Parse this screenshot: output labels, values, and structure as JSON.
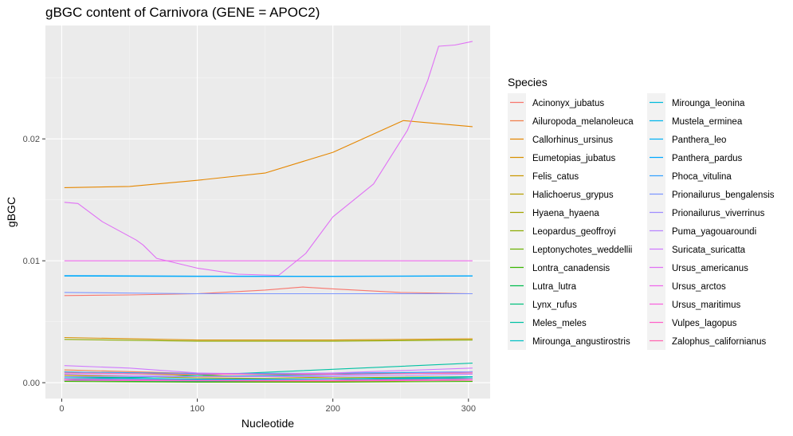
{
  "chart_data": {
    "type": "line",
    "title": "gBGC content of Carnivora (GENE = APOC2)",
    "xlabel": "Nucleotide",
    "ylabel": "gBGC",
    "xlim": [
      -12,
      316
    ],
    "ylim": [
      -0.0013,
      0.0293
    ],
    "x_ticks": [
      0,
      100,
      200,
      300
    ],
    "x_tick_labels": [
      "0",
      "100",
      "200",
      "300"
    ],
    "y_ticks": [
      0.0,
      0.01,
      0.02
    ],
    "y_tick_labels": [
      "0.00",
      "0.01",
      "0.02"
    ],
    "grid": true,
    "legend": {
      "title": "Species",
      "placement": "right",
      "columns": 2
    },
    "series": [
      {
        "name": "Acinonyx_jubatus",
        "color": "#F8766D",
        "x": [
          2,
          50,
          100,
          150,
          178,
          200,
          250,
          303
        ],
        "y": [
          0.00715,
          0.0072,
          0.0073,
          0.0076,
          0.00785,
          0.0077,
          0.0074,
          0.0073
        ]
      },
      {
        "name": "Ailuropoda_melanoleuca",
        "color": "#F17E4A",
        "x": [
          2,
          100,
          200,
          303
        ],
        "y": [
          0.00105,
          0.00075,
          0.0007,
          0.0008
        ]
      },
      {
        "name": "Callorhinus_ursinus",
        "color": "#E58700",
        "x": [
          2,
          50,
          100,
          150,
          200,
          252,
          303
        ],
        "y": [
          0.016,
          0.0161,
          0.0166,
          0.0172,
          0.0189,
          0.0215,
          0.021
        ]
      },
      {
        "name": "Eumetopias_jubatus",
        "color": "#D89000",
        "x": [
          2,
          100,
          200,
          303
        ],
        "y": [
          0.0037,
          0.0035,
          0.0035,
          0.0036
        ]
      },
      {
        "name": "Felis_catus",
        "color": "#C99800",
        "x": [
          2,
          100,
          200,
          303
        ],
        "y": [
          0.0002,
          0.0001,
          0.0001,
          0.0002
        ]
      },
      {
        "name": "Halichoerus_grypus",
        "color": "#B79F00",
        "x": [
          2,
          100,
          200,
          303
        ],
        "y": [
          0.0006,
          0.0004,
          0.0003,
          0.0004
        ]
      },
      {
        "name": "Hyaena_hyaena",
        "color": "#A3A500",
        "x": [
          2,
          100,
          200,
          303
        ],
        "y": [
          0.0009,
          0.0006,
          0.0004,
          0.0005
        ]
      },
      {
        "name": "Leopardus_geoffroyi",
        "color": "#8CAB00",
        "x": [
          2,
          100,
          200,
          303
        ],
        "y": [
          0.00355,
          0.0034,
          0.0034,
          0.0035
        ]
      },
      {
        "name": "Leptonychotes_weddellii",
        "color": "#6BB100",
        "x": [
          2,
          100,
          200,
          303
        ],
        "y": [
          0.0003,
          0.0002,
          0.0002,
          0.0003
        ]
      },
      {
        "name": "Lontra_canadensis",
        "color": "#39B600",
        "x": [
          2,
          100,
          200,
          303
        ],
        "y": [
          0.0001,
          5e-05,
          5e-05,
          0.0001
        ]
      },
      {
        "name": "Lutra_lutra",
        "color": "#00BB4E",
        "x": [
          2,
          100,
          200,
          303
        ],
        "y": [
          0.0002,
          0.0001,
          0.0002,
          0.0004
        ]
      },
      {
        "name": "Lynx_rufus",
        "color": "#00BF7D",
        "x": [
          2,
          100,
          200,
          303
        ],
        "y": [
          0.0004,
          0.0005,
          0.0007,
          0.0009
        ]
      },
      {
        "name": "Meles_meles",
        "color": "#00C1A3",
        "x": [
          2,
          100,
          200,
          303
        ],
        "y": [
          0.0002,
          0.0006,
          0.0011,
          0.0016
        ]
      },
      {
        "name": "Mirounga_angustirostris",
        "color": "#00BFC4",
        "x": [
          2,
          100,
          200,
          303
        ],
        "y": [
          0.0003,
          0.00025,
          0.0003,
          0.0005
        ]
      },
      {
        "name": "Mirounga_leonina",
        "color": "#00BBDB",
        "x": [
          2,
          100,
          200,
          303
        ],
        "y": [
          0.0004,
          0.0003,
          0.0003,
          0.0004
        ]
      },
      {
        "name": "Mustela_erminea",
        "color": "#00B6EB",
        "x": [
          2,
          100,
          200,
          303
        ],
        "y": [
          0.0002,
          0.0002,
          0.0002,
          0.0003
        ]
      },
      {
        "name": "Panthera_leo",
        "color": "#00B0F6",
        "x": [
          2,
          100,
          200,
          303
        ],
        "y": [
          0.00875,
          0.00872,
          0.00872,
          0.00875
        ]
      },
      {
        "name": "Panthera_pardus",
        "color": "#00A8FF",
        "x": [
          2,
          100,
          200,
          303
        ],
        "y": [
          0.00878,
          0.00874,
          0.00873,
          0.00876
        ]
      },
      {
        "name": "Phoca_vitulina",
        "color": "#35A2FF",
        "x": [
          2,
          100,
          200,
          303
        ],
        "y": [
          0.00088,
          0.00075,
          0.00078,
          0.0009
        ]
      },
      {
        "name": "Prionailurus_bengalensis",
        "color": "#7C96FF",
        "x": [
          2,
          100,
          200,
          303
        ],
        "y": [
          0.0074,
          0.0073,
          0.0073,
          0.0073
        ]
      },
      {
        "name": "Prionailurus_viverrinus",
        "color": "#9F8CFF",
        "x": [
          2,
          100,
          200,
          303
        ],
        "y": [
          0.0005,
          0.0005,
          0.0006,
          0.0009
        ]
      },
      {
        "name": "Puma_yagouaroundi",
        "color": "#B983FF",
        "x": [
          2,
          100,
          200,
          303
        ],
        "y": [
          0.0007,
          0.0005,
          0.0005,
          0.0007
        ]
      },
      {
        "name": "Suricata_suricatta",
        "color": "#CF78FF",
        "x": [
          2,
          50,
          100,
          150,
          200,
          303
        ],
        "y": [
          0.0014,
          0.0012,
          0.0008,
          0.0007,
          0.0008,
          0.0012
        ]
      },
      {
        "name": "Ursus_americanus",
        "color": "#E070F5",
        "x": [
          2,
          12,
          30,
          55,
          60,
          70,
          100,
          130,
          160,
          180,
          200,
          230,
          255,
          270,
          278,
          290,
          303
        ],
        "y": [
          0.0148,
          0.0147,
          0.0132,
          0.0117,
          0.0113,
          0.0102,
          0.0094,
          0.0089,
          0.0088,
          0.0106,
          0.0136,
          0.0163,
          0.0207,
          0.0248,
          0.0276,
          0.0277,
          0.028
        ]
      },
      {
        "name": "Ursus_arctos",
        "color": "#EF67EB",
        "x": [
          2,
          100,
          200,
          303
        ],
        "y": [
          0.01,
          0.01,
          0.01,
          0.01
        ]
      },
      {
        "name": "Ursus_maritimus",
        "color": "#F962DD",
        "x": [
          2,
          100,
          200,
          303
        ],
        "y": [
          0.0003,
          0.0002,
          0.0002,
          0.0003
        ]
      },
      {
        "name": "Vulpes_lagopus",
        "color": "#FF61C9",
        "x": [
          2,
          100,
          200,
          303
        ],
        "y": [
          0.0002,
          0.00015,
          0.00015,
          0.0002
        ]
      },
      {
        "name": "Zalophus_californianus",
        "color": "#FF64B0",
        "x": [
          2,
          100,
          200,
          303
        ],
        "y": [
          0.0008,
          0.0007,
          0.0007,
          0.0008
        ]
      }
    ]
  }
}
